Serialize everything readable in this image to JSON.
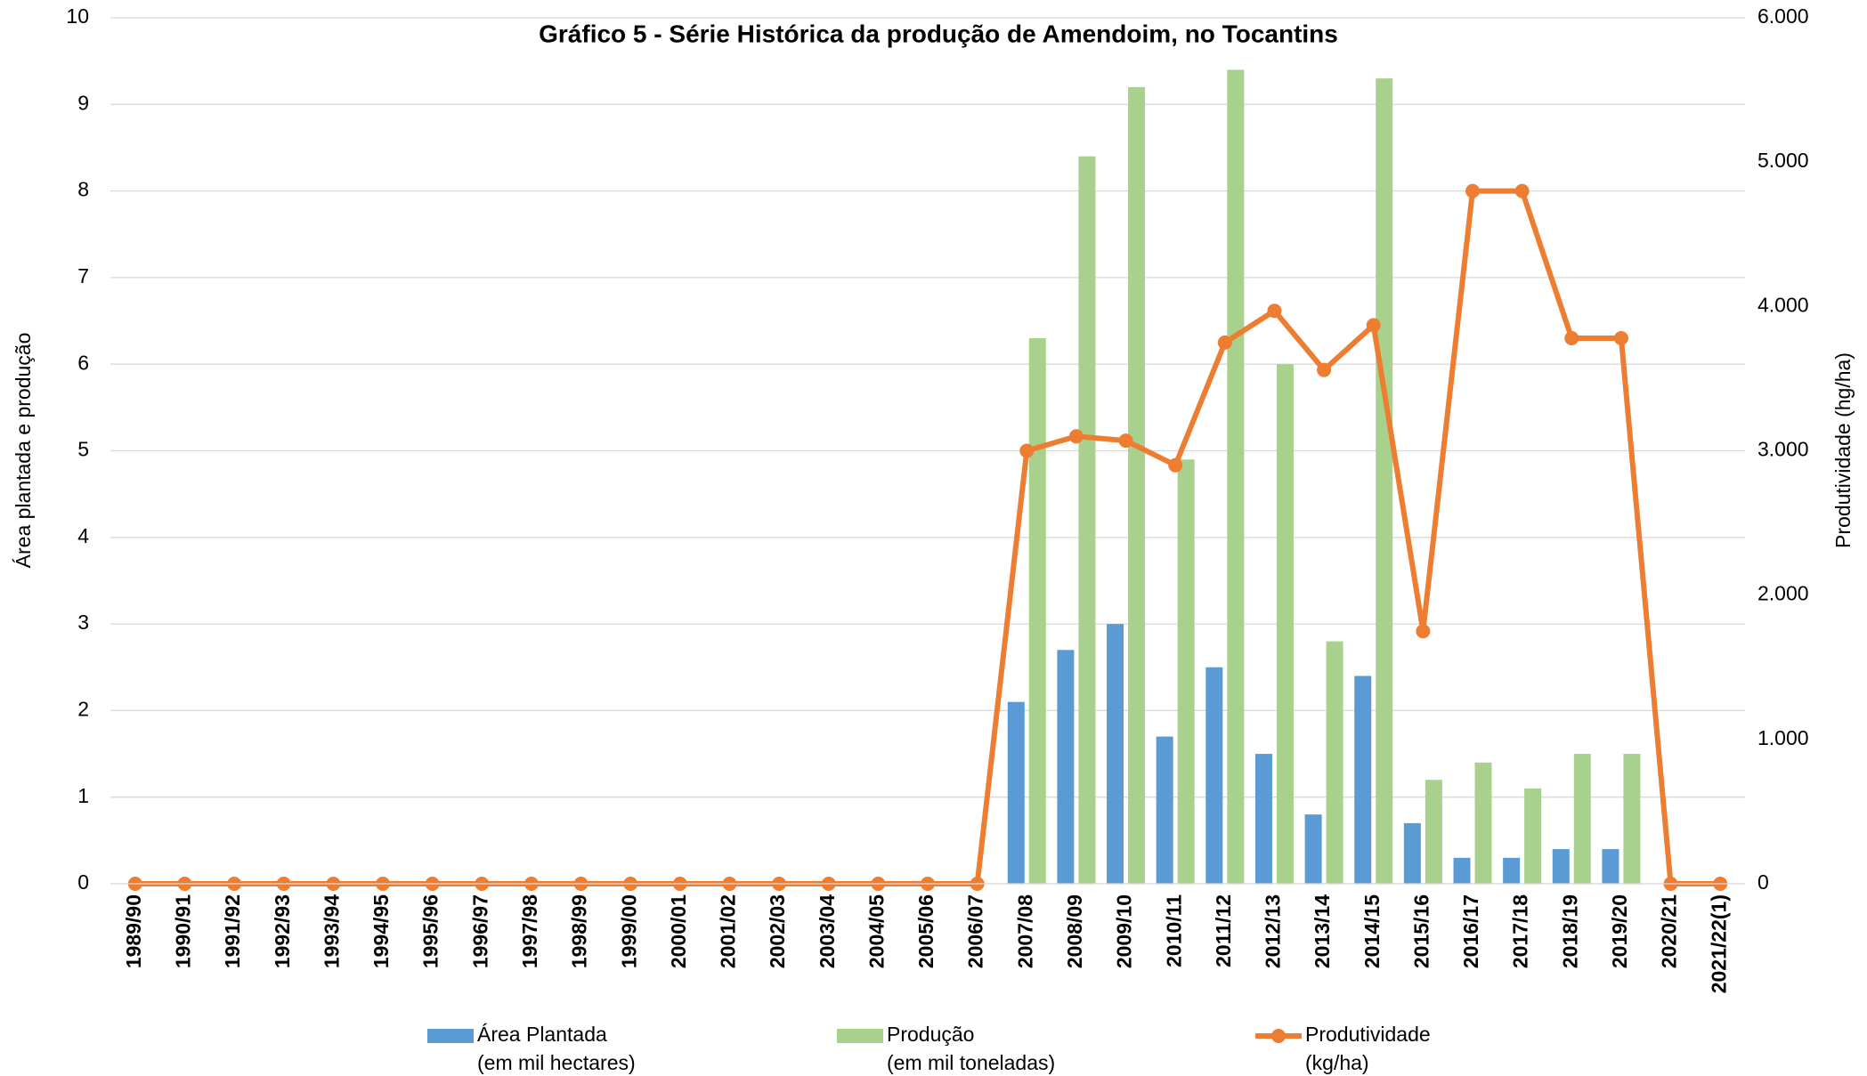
{
  "chart_data": {
    "type": "bar",
    "title": "Gráfico 5 - Série Histórica da produção de Amendoim, no Tocantins",
    "y_label": "Área plantada e produção",
    "y2_label": "Produtividade (hg/ha)",
    "categories": [
      "1989/90",
      "1990/91",
      "1991/92",
      "1992/93",
      "1993/94",
      "1994/95",
      "1995/96",
      "1996/97",
      "1997/98",
      "1998/99",
      "1999/00",
      "2000/01",
      "2001/02",
      "2002/03",
      "2003/04",
      "2004/05",
      "2005/06",
      "2006/07",
      "2007/08",
      "2008/09",
      "2009/10",
      "2010/11",
      "2011/12",
      "2012/13",
      "2013/14",
      "2014/15",
      "2015/16",
      "2016/17",
      "2017/18",
      "2018/19",
      "2019/20",
      "2020/21",
      "2021/22(1)"
    ],
    "series": [
      {
        "name": "Área Plantada\n(em mil hectares)",
        "type": "bar",
        "color": "#5b9bd5",
        "values": [
          0,
          0,
          0,
          0,
          0,
          0,
          0,
          0,
          0,
          0,
          0,
          0,
          0,
          0,
          0,
          0,
          0,
          0,
          2.1,
          2.7,
          3.0,
          1.7,
          2.5,
          1.5,
          0.8,
          2.4,
          0.7,
          0.3,
          0.3,
          0.4,
          0.4,
          0,
          0
        ]
      },
      {
        "name": "Produção\n(em mil toneladas)",
        "type": "bar",
        "color": "#a9d18e",
        "values": [
          0,
          0,
          0,
          0,
          0,
          0,
          0,
          0,
          0,
          0,
          0,
          0,
          0,
          0,
          0,
          0,
          0,
          0,
          6.3,
          8.4,
          9.2,
          4.9,
          9.4,
          6.0,
          2.8,
          9.3,
          1.2,
          1.4,
          1.1,
          1.5,
          1.5,
          0,
          0
        ]
      },
      {
        "name": "Produtividade\n(kg/ha)",
        "type": "line",
        "axis": "y2",
        "color": "#ed7d31",
        "values": [
          0,
          0,
          0,
          0,
          0,
          0,
          0,
          0,
          0,
          0,
          0,
          0,
          0,
          0,
          0,
          0,
          0,
          0,
          3000,
          3100,
          3070,
          2900,
          3750,
          3970,
          3560,
          3870,
          1750,
          4800,
          4800,
          3780,
          3780,
          0,
          0
        ]
      }
    ],
    "ylim": [
      0,
      10
    ],
    "yticks": [
      0,
      1,
      2,
      3,
      4,
      5,
      6,
      7,
      8,
      9,
      10
    ],
    "y2lim": [
      0,
      6000
    ],
    "y2ticks": [
      0,
      {
        "value": 1000,
        "label": "1.000"
      },
      {
        "value": 2000,
        "label": "2.000"
      },
      {
        "value": 3000,
        "label": "3.000"
      },
      {
        "value": 4000,
        "label": "4.000"
      },
      {
        "value": 5000,
        "label": "5.000"
      },
      {
        "value": 6000,
        "label": "6.000"
      }
    ],
    "grid": true,
    "legend": "bottom"
  }
}
